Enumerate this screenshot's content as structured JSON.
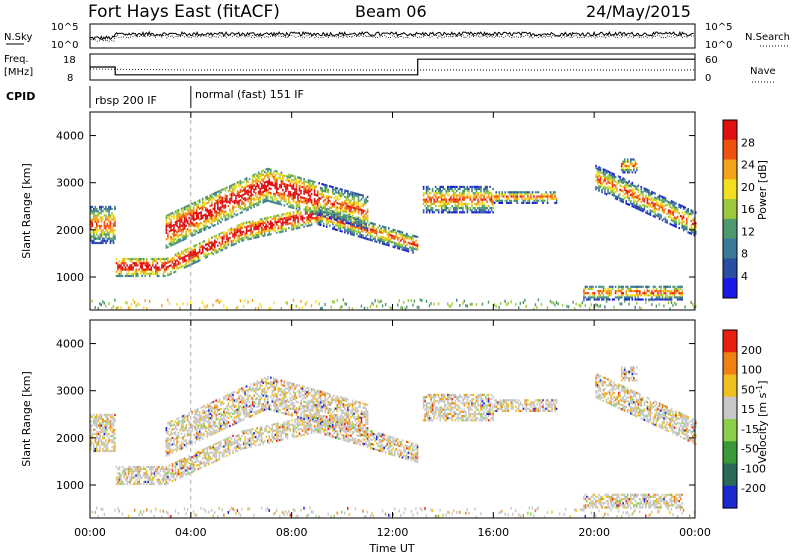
{
  "header": {
    "station": "Fort Hays East (fitACF)",
    "beam": "Beam 06",
    "date": "24/May/2015"
  },
  "top_panels": {
    "nsky_label": "N.Sky",
    "nsky_ticks": [
      "10^5",
      "10^0"
    ],
    "nsearch_label": "N.Search",
    "nsearch_ticks": [
      "10^5",
      "10^0"
    ],
    "freq_label_line1": "Freq.",
    "freq_label_line2": "[MHz]",
    "freq_ticks": [
      "18",
      "8"
    ],
    "nave_label": "Nave",
    "nave_ticks": [
      "60",
      "0"
    ],
    "cpid_label": "CPID",
    "cpid_segments": [
      {
        "start_hour": 0,
        "end_hour": 4,
        "label": "rbsp 200 IF"
      },
      {
        "start_hour": 4,
        "end_hour": 24,
        "label": "normal (fast) 151 IF"
      }
    ],
    "freq_steps": [
      {
        "start_hour": 0,
        "end_hour": 1,
        "value_mhz": 13
      },
      {
        "start_hour": 1,
        "end_hour": 13,
        "value_mhz": 10
      },
      {
        "start_hour": 13,
        "end_hour": 24,
        "value_mhz": 16
      }
    ]
  },
  "chart_data": [
    {
      "type": "heatmap",
      "name": "power",
      "ylabel": "Slant Range [km]",
      "yticks": [
        "4000",
        "3000",
        "2000",
        "1000"
      ],
      "ylim": [
        300,
        4500
      ],
      "xlim": [
        0,
        24
      ],
      "colorbar_label": "Power [dB]",
      "colorbar_ticks": [
        "28",
        "24",
        "20",
        "16",
        "12",
        "8",
        "4"
      ],
      "colorbar_range": [
        0,
        30
      ],
      "colors": [
        "#1a1ae6",
        "#2a4fa0",
        "#3d7a9a",
        "#4e9a6e",
        "#9ec83c",
        "#f2e020",
        "#f5a318",
        "#f05010",
        "#e01010"
      ]
    },
    {
      "type": "heatmap",
      "name": "velocity",
      "ylabel": "Slant Range [km]",
      "yticks": [
        "4000",
        "3000",
        "2000",
        "1000"
      ],
      "ylim": [
        300,
        4500
      ],
      "xlim": [
        0,
        24
      ],
      "colorbar_label": "Velocity [m s^-1]",
      "colorbar_ticks": [
        "200",
        "100",
        "50",
        "15",
        "-15",
        "-50",
        "-100",
        "-200"
      ],
      "colorbar_range": [
        -250,
        250
      ],
      "colors": [
        "#1a2ad0",
        "#2a6a5a",
        "#3a9a3a",
        "#8ad04a",
        "#c8c8c8",
        "#f0c020",
        "#f08010",
        "#e82010"
      ]
    }
  ],
  "x_axis": {
    "ticks": [
      "00:00",
      "04:00",
      "08:00",
      "12:00",
      "16:00",
      "20:00",
      "00:00"
    ],
    "label": "Time UT"
  }
}
